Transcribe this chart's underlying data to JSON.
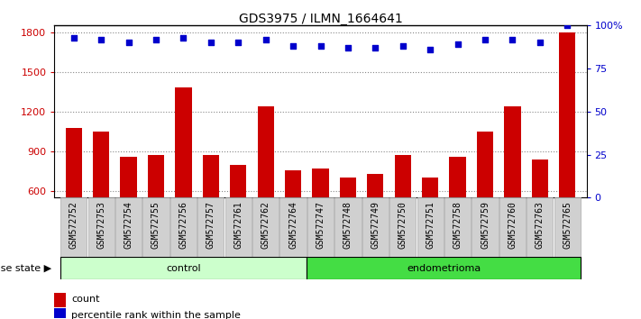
{
  "title": "GDS3975 / ILMN_1664641",
  "samples": [
    "GSM572752",
    "GSM572753",
    "GSM572754",
    "GSM572755",
    "GSM572756",
    "GSM572757",
    "GSM572761",
    "GSM572762",
    "GSM572764",
    "GSM572747",
    "GSM572748",
    "GSM572749",
    "GSM572750",
    "GSM572751",
    "GSM572758",
    "GSM572759",
    "GSM572760",
    "GSM572763",
    "GSM572765"
  ],
  "counts": [
    1080,
    1050,
    860,
    870,
    1380,
    870,
    800,
    1240,
    760,
    770,
    700,
    730,
    870,
    700,
    860,
    1050,
    1240,
    840,
    1800
  ],
  "percentiles": [
    93,
    92,
    90,
    92,
    93,
    90,
    90,
    92,
    88,
    88,
    87,
    87,
    88,
    86,
    89,
    92,
    92,
    90,
    100
  ],
  "control_count": 9,
  "endometrioma_count": 10,
  "ylim_left": [
    550,
    1850
  ],
  "ylim_right": [
    0,
    100
  ],
  "yticks_left": [
    600,
    900,
    1200,
    1500,
    1800
  ],
  "yticks_right": [
    0,
    25,
    50,
    75,
    100
  ],
  "bar_color": "#cc0000",
  "dot_color": "#0000cc",
  "control_bg": "#ccffcc",
  "endometrioma_bg": "#44dd44",
  "xticklabel_bg": "#d0d0d0",
  "xticklabel_border": "#aaaaaa",
  "legend_count_color": "#cc0000",
  "legend_pct_color": "#0000cc",
  "disease_state_label": "disease state",
  "control_label": "control",
  "endometrioma_label": "endometrioma",
  "legend_count": "count",
  "legend_pct": "percentile rank within the sample",
  "grid_color": "#888888",
  "spine_color": "#000000"
}
